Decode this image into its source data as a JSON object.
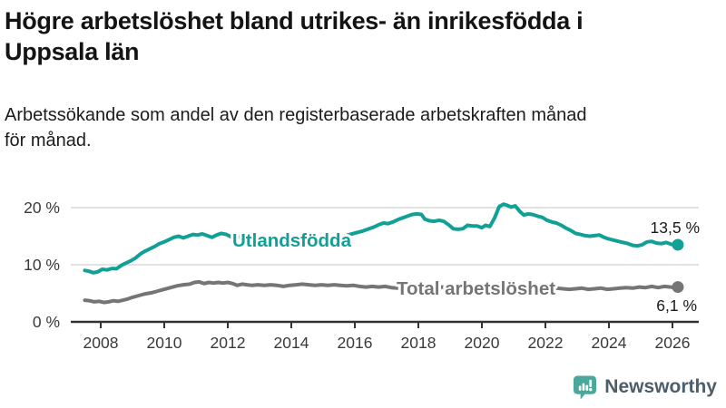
{
  "header": {
    "title_lines": [
      "Högre arbetslöshet bland utrikes- än inrikesfödda i",
      "Uppsala län"
    ],
    "subtitle_lines": [
      "Arbetssökande som andel av den registerbaserade arbetskraften månad",
      "för månad."
    ]
  },
  "footer": {
    "brand": "Newsworthy",
    "logo_icon": "bar-chart-speech-bubble-icon",
    "icon_color": "#4ba79b",
    "text_color": "#4c5d6b"
  },
  "colors": {
    "series_foreign": "#11a096",
    "series_total": "#757575",
    "gridline": "#d9d9d9",
    "axis": "#333333",
    "tick_label": "#3a3a3a",
    "value_label": "#1a1a1a"
  },
  "chart_data": {
    "type": "line",
    "title": "Högre arbetslöshet bland utrikes- än inrikesfödda i Uppsala län",
    "subtitle": "Arbetssökande som andel av den registerbaserade arbetskraften månad för månad.",
    "xlabel": "",
    "ylabel": "",
    "grid": "horizontal",
    "legend_position": "inline-labels",
    "ylim": [
      0,
      21.5
    ],
    "x_range": [
      2007.4,
      2026.8
    ],
    "x_tick_years": [
      2008,
      2010,
      2012,
      2014,
      2016,
      2018,
      2020,
      2022,
      2024,
      2026
    ],
    "x_tick_labels": [
      "2008",
      "2010",
      "2012",
      "2014",
      "2016",
      "2018",
      "2020",
      "2022",
      "2024",
      "2026"
    ],
    "y_ticks": [
      {
        "value": 0,
        "label": "0 %"
      },
      {
        "value": 10,
        "label": "10 %"
      },
      {
        "value": 20,
        "label": "20 %"
      }
    ],
    "series": [
      {
        "name": "Utlandsfödda",
        "color": "#11a096",
        "end_value": 13.5,
        "end_label": "13,5 %",
        "points": [
          [
            2007.5,
            9.0
          ],
          [
            2007.63,
            8.85
          ],
          [
            2007.77,
            8.6
          ],
          [
            2007.9,
            8.75
          ],
          [
            2008.05,
            9.2
          ],
          [
            2008.2,
            9.1
          ],
          [
            2008.35,
            9.35
          ],
          [
            2008.5,
            9.3
          ],
          [
            2008.65,
            9.9
          ],
          [
            2008.8,
            10.3
          ],
          [
            2008.95,
            10.7
          ],
          [
            2009.1,
            11.2
          ],
          [
            2009.25,
            11.9
          ],
          [
            2009.4,
            12.4
          ],
          [
            2009.55,
            12.8
          ],
          [
            2009.7,
            13.2
          ],
          [
            2009.85,
            13.7
          ],
          [
            2010.0,
            14.0
          ],
          [
            2010.15,
            14.4
          ],
          [
            2010.3,
            14.8
          ],
          [
            2010.45,
            15.0
          ],
          [
            2010.6,
            14.7
          ],
          [
            2010.75,
            15.0
          ],
          [
            2010.9,
            15.3
          ],
          [
            2011.05,
            15.2
          ],
          [
            2011.2,
            15.4
          ],
          [
            2011.35,
            15.1
          ],
          [
            2011.5,
            14.8
          ],
          [
            2011.65,
            15.2
          ],
          [
            2011.8,
            15.5
          ],
          [
            2011.95,
            15.3
          ],
          [
            2012.1,
            14.9
          ],
          [
            2012.25,
            14.6
          ],
          [
            2012.4,
            15.0
          ],
          [
            2012.55,
            15.1
          ],
          [
            2012.7,
            14.7
          ],
          [
            2012.85,
            14.5
          ],
          [
            2013.0,
            14.9
          ],
          [
            2013.15,
            15.0
          ],
          [
            2013.35,
            14.7
          ],
          [
            2013.55,
            14.4
          ],
          [
            2013.75,
            14.6
          ],
          [
            2013.95,
            14.5
          ],
          [
            2014.15,
            14.3
          ],
          [
            2014.35,
            14.5
          ],
          [
            2014.55,
            14.6
          ],
          [
            2014.75,
            14.4
          ],
          [
            2014.95,
            14.6
          ],
          [
            2015.15,
            14.7
          ],
          [
            2015.4,
            14.8
          ],
          [
            2015.65,
            15.0
          ],
          [
            2015.85,
            15.3
          ],
          [
            2016.05,
            15.6
          ],
          [
            2016.25,
            15.9
          ],
          [
            2016.45,
            16.3
          ],
          [
            2016.6,
            16.6
          ],
          [
            2016.75,
            17.0
          ],
          [
            2016.9,
            17.3
          ],
          [
            2017.05,
            17.2
          ],
          [
            2017.2,
            17.5
          ],
          [
            2017.4,
            18.0
          ],
          [
            2017.6,
            18.4
          ],
          [
            2017.8,
            18.8
          ],
          [
            2017.95,
            18.9
          ],
          [
            2018.1,
            18.8
          ],
          [
            2018.2,
            18.0
          ],
          [
            2018.35,
            17.7
          ],
          [
            2018.5,
            17.6
          ],
          [
            2018.65,
            17.8
          ],
          [
            2018.8,
            17.6
          ],
          [
            2018.95,
            17.0
          ],
          [
            2019.1,
            16.3
          ],
          [
            2019.25,
            16.2
          ],
          [
            2019.4,
            16.3
          ],
          [
            2019.55,
            16.9
          ],
          [
            2019.7,
            16.8
          ],
          [
            2019.85,
            16.8
          ],
          [
            2020.0,
            16.5
          ],
          [
            2020.12,
            16.9
          ],
          [
            2020.25,
            16.7
          ],
          [
            2020.4,
            18.2
          ],
          [
            2020.55,
            20.2
          ],
          [
            2020.68,
            20.6
          ],
          [
            2020.8,
            20.4
          ],
          [
            2020.92,
            20.1
          ],
          [
            2021.05,
            20.3
          ],
          [
            2021.2,
            19.3
          ],
          [
            2021.32,
            18.7
          ],
          [
            2021.45,
            18.9
          ],
          [
            2021.6,
            18.8
          ],
          [
            2021.75,
            18.5
          ],
          [
            2021.9,
            18.3
          ],
          [
            2022.05,
            17.8
          ],
          [
            2022.2,
            17.5
          ],
          [
            2022.35,
            17.3
          ],
          [
            2022.5,
            16.9
          ],
          [
            2022.65,
            16.4
          ],
          [
            2022.8,
            16.0
          ],
          [
            2022.95,
            15.5
          ],
          [
            2023.1,
            15.3
          ],
          [
            2023.25,
            15.1
          ],
          [
            2023.4,
            15.0
          ],
          [
            2023.55,
            15.1
          ],
          [
            2023.7,
            15.2
          ],
          [
            2023.85,
            14.8
          ],
          [
            2024.0,
            14.5
          ],
          [
            2024.15,
            14.3
          ],
          [
            2024.3,
            14.1
          ],
          [
            2024.45,
            13.9
          ],
          [
            2024.6,
            13.7
          ],
          [
            2024.75,
            13.4
          ],
          [
            2024.9,
            13.3
          ],
          [
            2025.05,
            13.5
          ],
          [
            2025.2,
            14.0
          ],
          [
            2025.35,
            14.1
          ],
          [
            2025.5,
            13.8
          ],
          [
            2025.65,
            13.7
          ],
          [
            2025.8,
            13.9
          ],
          [
            2025.95,
            13.6
          ],
          [
            2026.1,
            13.4
          ],
          [
            2026.17,
            13.5
          ]
        ]
      },
      {
        "name": "Total arbetslöshet",
        "color": "#757575",
        "end_value": 6.1,
        "end_label": "6,1 %",
        "points": [
          [
            2007.5,
            3.8
          ],
          [
            2007.65,
            3.7
          ],
          [
            2007.8,
            3.5
          ],
          [
            2007.95,
            3.6
          ],
          [
            2008.1,
            3.4
          ],
          [
            2008.25,
            3.5
          ],
          [
            2008.4,
            3.7
          ],
          [
            2008.55,
            3.6
          ],
          [
            2008.7,
            3.8
          ],
          [
            2008.85,
            4.0
          ],
          [
            2009.0,
            4.3
          ],
          [
            2009.2,
            4.6
          ],
          [
            2009.4,
            4.9
          ],
          [
            2009.6,
            5.1
          ],
          [
            2009.8,
            5.4
          ],
          [
            2010.0,
            5.7
          ],
          [
            2010.2,
            6.0
          ],
          [
            2010.4,
            6.3
          ],
          [
            2010.6,
            6.5
          ],
          [
            2010.8,
            6.6
          ],
          [
            2010.95,
            6.9
          ],
          [
            2011.1,
            7.0
          ],
          [
            2011.25,
            6.7
          ],
          [
            2011.4,
            6.9
          ],
          [
            2011.55,
            6.8
          ],
          [
            2011.7,
            6.9
          ],
          [
            2011.85,
            6.8
          ],
          [
            2012.0,
            6.9
          ],
          [
            2012.15,
            6.7
          ],
          [
            2012.3,
            6.4
          ],
          [
            2012.45,
            6.6
          ],
          [
            2012.6,
            6.5
          ],
          [
            2012.75,
            6.4
          ],
          [
            2012.95,
            6.5
          ],
          [
            2013.15,
            6.4
          ],
          [
            2013.35,
            6.5
          ],
          [
            2013.55,
            6.4
          ],
          [
            2013.75,
            6.2
          ],
          [
            2013.95,
            6.4
          ],
          [
            2014.15,
            6.5
          ],
          [
            2014.35,
            6.6
          ],
          [
            2014.55,
            6.5
          ],
          [
            2014.75,
            6.4
          ],
          [
            2014.95,
            6.5
          ],
          [
            2015.15,
            6.4
          ],
          [
            2015.35,
            6.5
          ],
          [
            2015.55,
            6.4
          ],
          [
            2015.75,
            6.3
          ],
          [
            2015.95,
            6.4
          ],
          [
            2016.15,
            6.2
          ],
          [
            2016.35,
            6.1
          ],
          [
            2016.55,
            6.2
          ],
          [
            2016.75,
            6.1
          ],
          [
            2016.95,
            6.2
          ],
          [
            2017.15,
            6.0
          ],
          [
            2017.35,
            5.9
          ],
          [
            2017.55,
            6.0
          ],
          [
            2017.75,
            6.0
          ],
          [
            2017.95,
            6.1
          ],
          [
            2018.15,
            6.2
          ],
          [
            2018.35,
            6.1
          ],
          [
            2018.55,
            6.0
          ],
          [
            2018.75,
            6.1
          ],
          [
            2018.95,
            6.0
          ],
          [
            2019.15,
            5.9
          ],
          [
            2019.35,
            5.8
          ],
          [
            2019.55,
            5.9
          ],
          [
            2019.75,
            5.8
          ],
          [
            2019.95,
            5.9
          ],
          [
            2020.15,
            6.1
          ],
          [
            2020.35,
            6.4
          ],
          [
            2020.55,
            6.6
          ],
          [
            2020.75,
            6.5
          ],
          [
            2020.95,
            6.4
          ],
          [
            2021.15,
            6.3
          ],
          [
            2021.35,
            6.2
          ],
          [
            2021.55,
            6.1
          ],
          [
            2021.75,
            6.0
          ],
          [
            2021.95,
            5.9
          ],
          [
            2022.15,
            5.8
          ],
          [
            2022.35,
            5.9
          ],
          [
            2022.55,
            5.8
          ],
          [
            2022.75,
            5.7
          ],
          [
            2022.95,
            5.8
          ],
          [
            2023.15,
            5.9
          ],
          [
            2023.35,
            5.7
          ],
          [
            2023.55,
            5.8
          ],
          [
            2023.75,
            5.9
          ],
          [
            2023.95,
            5.7
          ],
          [
            2024.15,
            5.8
          ],
          [
            2024.35,
            5.9
          ],
          [
            2024.55,
            6.0
          ],
          [
            2024.75,
            5.9
          ],
          [
            2024.95,
            6.1
          ],
          [
            2025.15,
            6.0
          ],
          [
            2025.35,
            6.2
          ],
          [
            2025.55,
            6.0
          ],
          [
            2025.75,
            6.2
          ],
          [
            2025.95,
            6.1
          ],
          [
            2026.1,
            6.0
          ],
          [
            2026.17,
            6.1
          ]
        ]
      }
    ]
  }
}
